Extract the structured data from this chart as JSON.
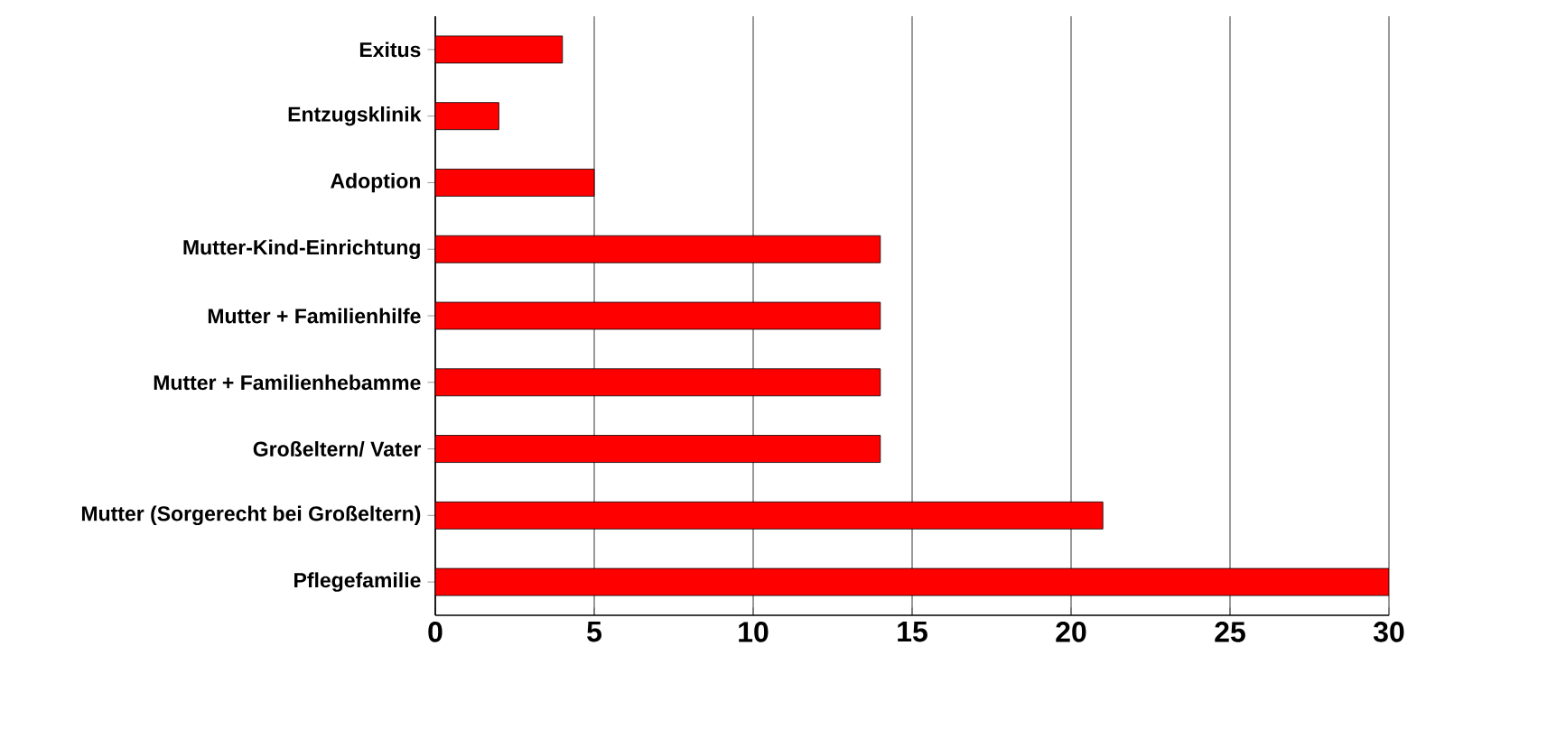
{
  "chart_data": {
    "type": "bar",
    "orientation": "horizontal",
    "categories": [
      "Exitus",
      "Entzugsklinik",
      "Adoption",
      "Mutter-Kind-Einrichtung",
      "Mutter + Familienhilfe",
      "Mutter + Familienhebamme",
      "Großeltern/ Vater",
      "Mutter (Sorgerecht bei Großeltern)",
      "Pflegefamilie"
    ],
    "values": [
      4,
      2,
      5,
      14,
      14,
      14,
      14,
      21,
      30
    ],
    "color": "#ff0000",
    "xlim": [
      0,
      30
    ],
    "xticks": [
      0,
      5,
      10,
      15,
      20,
      25,
      30
    ],
    "grid": "x"
  }
}
